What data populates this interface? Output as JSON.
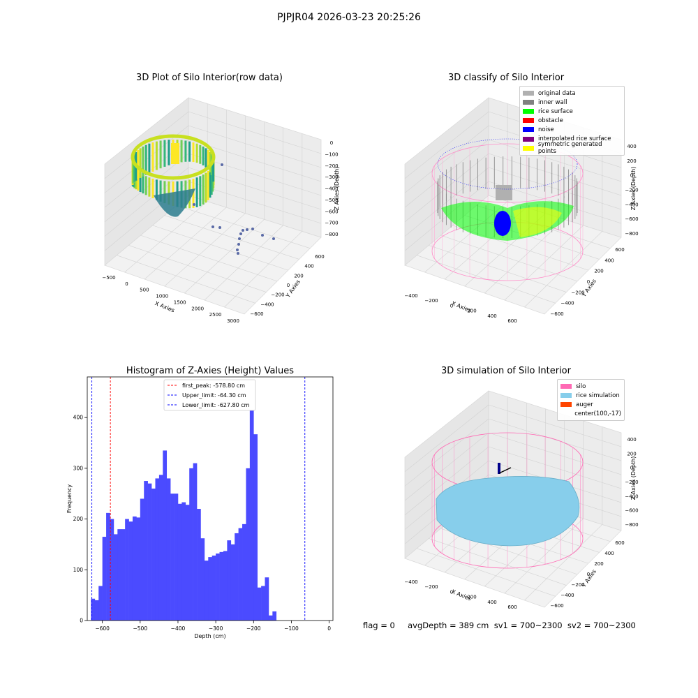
{
  "suptitle": "PJPJR04 2026-03-23 20:25:26",
  "panel_raw": {
    "title": "3D Plot of Silo Interior(row data)",
    "xlabel": "X Axies",
    "ylabel": "Y Axies",
    "zlabel": "Z Axies (Depth)",
    "xticks": [
      "−500",
      "0",
      "500",
      "1000",
      "1500",
      "2000",
      "2500",
      "3000"
    ],
    "yticks": [
      "600",
      "400",
      "200",
      "0",
      "−200",
      "−400",
      "−600"
    ],
    "zticks": [
      "0",
      "−100",
      "−200",
      "−300",
      "−400",
      "−500",
      "−600",
      "−700",
      "−800"
    ]
  },
  "panel_classify": {
    "title": "3D classify of Silo Interior",
    "xlabel": "X Axies",
    "ylabel": "Y Axies",
    "zlabel": "Z Axies (Depth)",
    "xticks": [
      "−400",
      "−200",
      "0",
      "200",
      "400",
      "600"
    ],
    "yticks": [
      "600",
      "400",
      "200",
      "0",
      "−200",
      "−400",
      "−600"
    ],
    "zticks": [
      "400",
      "200",
      "0",
      "−200",
      "−400",
      "−600",
      "−800"
    ],
    "legend": [
      {
        "label": "original data",
        "color": "#b0b0b0"
      },
      {
        "label": "inner wall",
        "color": "#808080"
      },
      {
        "label": "rice surface",
        "color": "#00ff00"
      },
      {
        "label": "obstacle",
        "color": "#ff0000"
      },
      {
        "label": "noise",
        "color": "#0000ff"
      },
      {
        "label": "interpolated rice surface",
        "color": "#800080"
      },
      {
        "label": "symmetric generated points",
        "color": "#ffff00"
      }
    ]
  },
  "panel_sim": {
    "title": "3D simulation of Silo Interior",
    "xlabel": "X Axies",
    "ylabel": "Y Axies",
    "zlabel": "Z Axies (Depth)",
    "xticks": [
      "−400",
      "−200",
      "0",
      "200",
      "400",
      "600"
    ],
    "yticks": [
      "600",
      "400",
      "200",
      "0",
      "−200",
      "−400",
      "−600"
    ],
    "zticks": [
      "400",
      "200",
      "0",
      "−200",
      "−400",
      "−600",
      "−800"
    ],
    "legend": [
      {
        "label": "silo",
        "color": "#ff69b4"
      },
      {
        "label": "rice simulation",
        "color": "#87ceeb"
      },
      {
        "label": "auger",
        "color": "#ff4500"
      },
      {
        "label": "center(100,-17)",
        "color": ""
      }
    ]
  },
  "footer": "flag = 0     avgDepth = 389 cm  sv1 = 700~2300  sv2 = 700~2300",
  "chart_data": {
    "type": "bar",
    "title": "Histogram of Z-Axies (Height) Values",
    "xlabel": "Depth (cm)",
    "ylabel": "Frequency",
    "xlim": [
      -640,
      10
    ],
    "ylim": [
      0,
      480
    ],
    "xticks": [
      -600,
      -500,
      -400,
      -300,
      -200,
      -100,
      0
    ],
    "yticks": [
      0,
      100,
      200,
      300,
      400
    ],
    "bin_start": -630,
    "bin_width": 10,
    "values": [
      43,
      40,
      68,
      165,
      212,
      200,
      170,
      180,
      180,
      200,
      195,
      205,
      203,
      240,
      275,
      270,
      260,
      280,
      287,
      335,
      280,
      250,
      250,
      230,
      233,
      228,
      300,
      310,
      220,
      162,
      118,
      125,
      128,
      132,
      135,
      137,
      158,
      150,
      172,
      182,
      190,
      300,
      465,
      367,
      65,
      68,
      85,
      10,
      18
    ],
    "bar_color": "#4b4bff",
    "lines": [
      {
        "label": "first_peak: -578.80 cm",
        "x": -578.8,
        "color": "#ff0000"
      },
      {
        "label": "Upper_limit: -64.30 cm",
        "x": -64.3,
        "color": "#0000ff"
      },
      {
        "label": "Lower_limit: -627.80 cm",
        "x": -627.8,
        "color": "#0000ff"
      }
    ],
    "legend_position": "upper center"
  }
}
